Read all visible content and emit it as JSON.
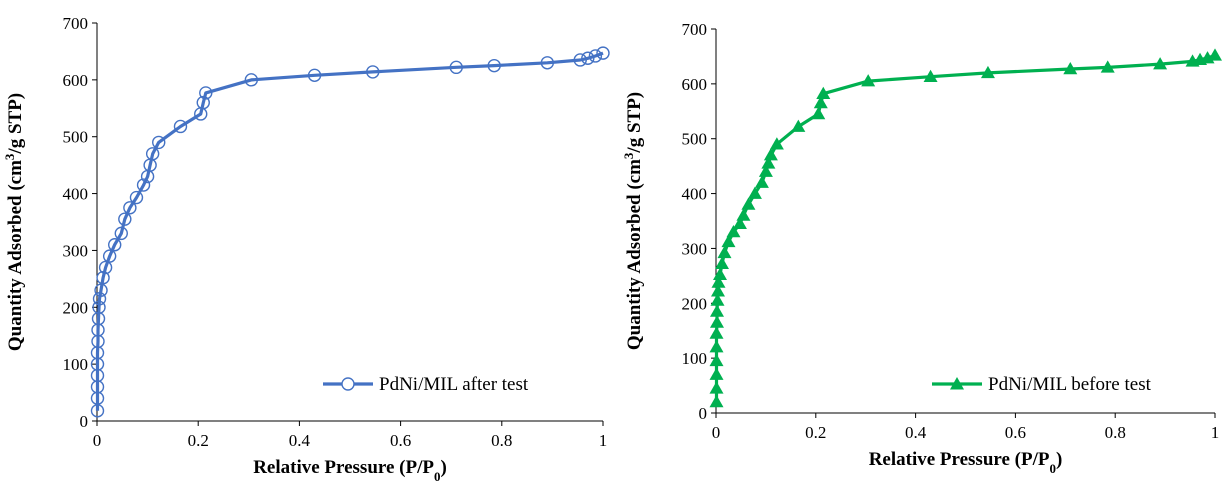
{
  "chart_data": [
    {
      "type": "line",
      "xlabel": "Relative Pressure (P/P",
      "xlabel_sub": "0",
      "xlabel_end": ")",
      "ylabel": "Quantity Adsorbed (cm",
      "ylabel_sup": "3",
      "ylabel_end": "/g STP)",
      "xlim": [
        0,
        1
      ],
      "ylim": [
        0,
        700
      ],
      "xticks": [
        0,
        0.2,
        0.4,
        0.6,
        0.8,
        1
      ],
      "xtick_labels": [
        "0",
        "0.2",
        "0.4",
        "0.6",
        "0.8",
        "1"
      ],
      "yticks": [
        0,
        100,
        200,
        300,
        400,
        500,
        600,
        700
      ],
      "ytick_labels": [
        "0",
        "100",
        "200",
        "300",
        "400",
        "500",
        "600",
        "700"
      ],
      "grid": false,
      "legend_position": "bottom-right",
      "series": [
        {
          "name": "PdNi/MIL after test",
          "color": "#4472C4",
          "marker": "open-circle",
          "x": [
            0.001,
            0.001,
            0.001,
            0.001,
            0.001,
            0.001,
            0.002,
            0.002,
            0.003,
            0.004,
            0.005,
            0.008,
            0.012,
            0.017,
            0.025,
            0.035,
            0.048,
            0.055,
            0.065,
            0.078,
            0.092,
            0.1,
            0.105,
            0.11,
            0.122,
            0.165,
            0.205,
            0.21,
            0.215,
            0.305,
            0.43,
            0.545,
            0.71,
            0.785,
            0.89,
            0.955,
            0.97,
            0.985,
            1.0
          ],
          "y": [
            18,
            40,
            60,
            80,
            100,
            120,
            140,
            160,
            180,
            200,
            215,
            230,
            252,
            270,
            290,
            310,
            330,
            355,
            375,
            393,
            415,
            430,
            450,
            470,
            490,
            518,
            540,
            560,
            577,
            600,
            608,
            614,
            622,
            625,
            630,
            635,
            638,
            642,
            647
          ]
        },
        {
          "name": "PdNi/MIL before test",
          "color": "#00B050",
          "marker": "filled-triangle",
          "x": [
            0.001,
            0.001,
            0.001,
            0.001,
            0.001,
            0.001,
            0.002,
            0.002,
            0.003,
            0.004,
            0.005,
            0.008,
            0.012,
            0.017,
            0.025,
            0.035,
            0.048,
            0.055,
            0.065,
            0.078,
            0.092,
            0.1,
            0.105,
            0.11,
            0.122,
            0.165,
            0.205,
            0.21,
            0.215,
            0.305,
            0.43,
            0.545,
            0.71,
            0.785,
            0.89,
            0.955,
            0.97,
            0.985,
            1.0
          ],
          "y": [
            20,
            45,
            70,
            95,
            120,
            145,
            165,
            185,
            205,
            222,
            238,
            252,
            272,
            292,
            312,
            330,
            345,
            360,
            380,
            400,
            420,
            440,
            455,
            470,
            490,
            522,
            545,
            565,
            582,
            605,
            613,
            620,
            627,
            630,
            636,
            641,
            644,
            647,
            652
          ]
        }
      ]
    }
  ]
}
